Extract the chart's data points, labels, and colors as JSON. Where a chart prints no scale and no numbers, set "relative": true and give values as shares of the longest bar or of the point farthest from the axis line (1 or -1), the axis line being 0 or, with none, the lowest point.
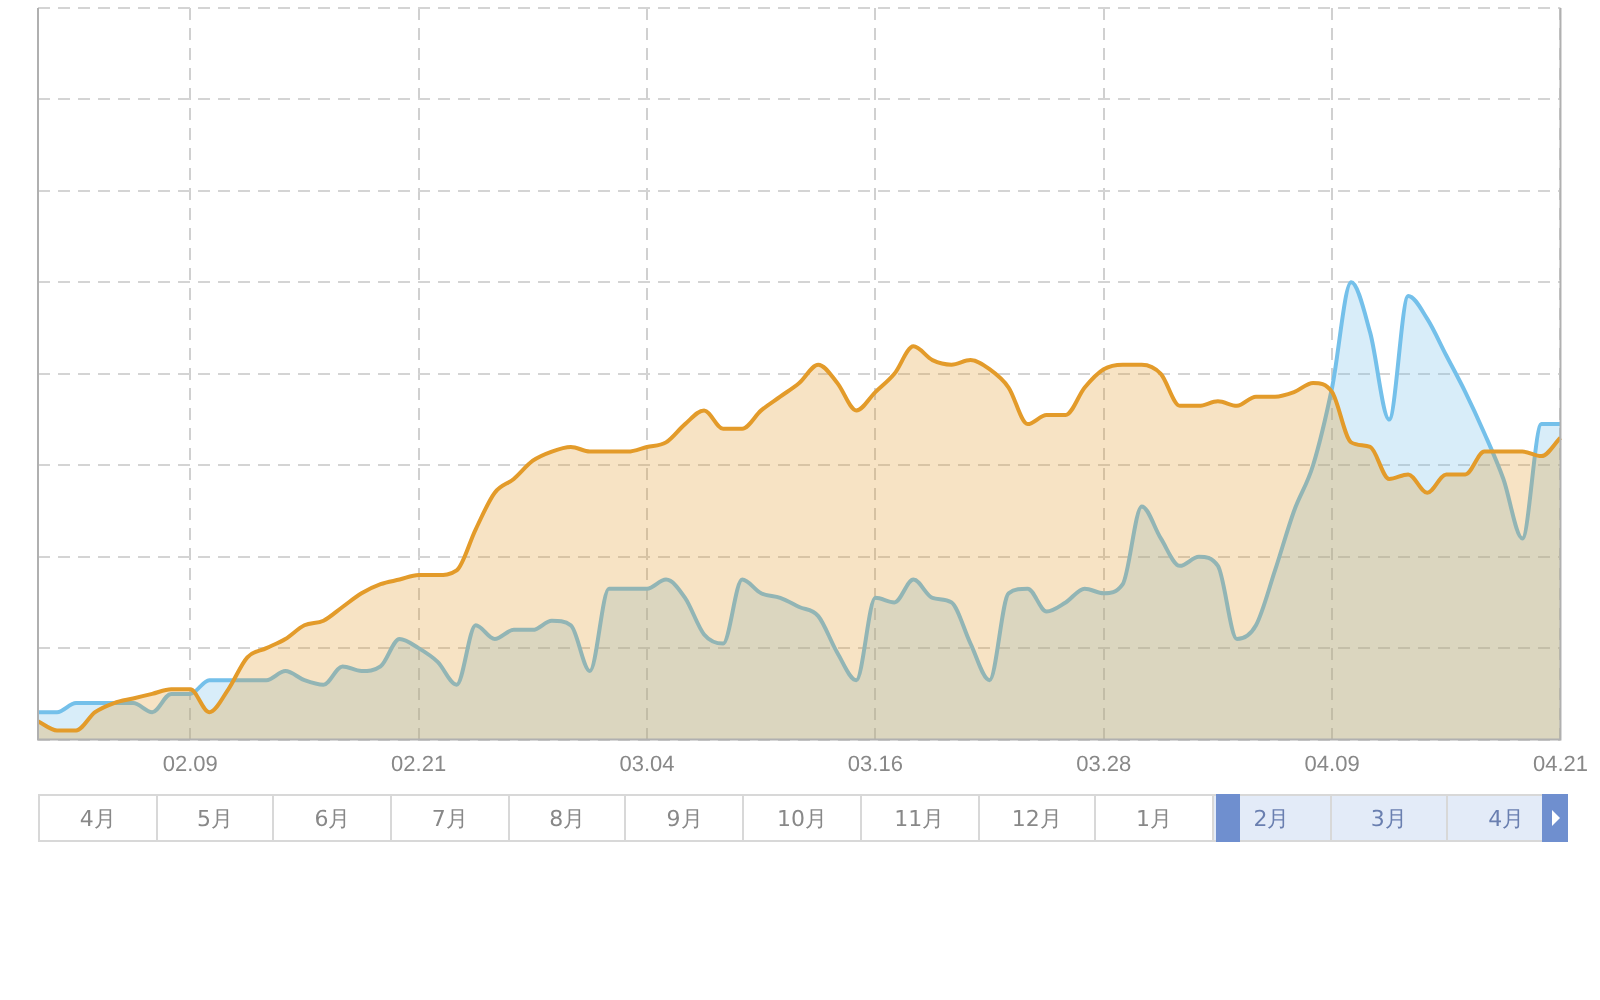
{
  "chart_data": {
    "type": "area",
    "relative": true,
    "grid": true,
    "categories": [
      null,
      null,
      null,
      null,
      null,
      null,
      null,
      null,
      "02.09",
      null,
      null,
      null,
      null,
      null,
      null,
      null,
      null,
      null,
      null,
      null,
      "02.21",
      null,
      null,
      null,
      null,
      null,
      null,
      null,
      null,
      null,
      null,
      null,
      "03.04",
      null,
      null,
      null,
      null,
      null,
      null,
      null,
      null,
      null,
      null,
      null,
      "03.16",
      null,
      null,
      null,
      null,
      null,
      null,
      null,
      null,
      null,
      null,
      null,
      "03.28",
      null,
      null,
      null,
      null,
      null,
      null,
      null,
      null,
      null,
      null,
      null,
      "04.09",
      null,
      null,
      null,
      null,
      null,
      null,
      null,
      null,
      null,
      null,
      null,
      "04.21"
    ],
    "series": [
      {
        "color": "#e39b2a",
        "values": [
          0.04,
          0.02,
          0.02,
          0.06,
          0.08,
          0.09,
          0.1,
          0.11,
          0.11,
          0.06,
          0.11,
          0.18,
          0.2,
          0.22,
          0.25,
          0.26,
          0.29,
          0.32,
          0.34,
          0.35,
          0.36,
          0.36,
          0.37,
          0.46,
          0.54,
          0.57,
          0.61,
          0.63,
          0.64,
          0.63,
          0.63,
          0.63,
          0.64,
          0.65,
          0.69,
          0.72,
          0.68,
          0.68,
          0.72,
          0.75,
          0.78,
          0.82,
          0.78,
          0.72,
          0.76,
          0.8,
          0.86,
          0.83,
          0.82,
          0.83,
          0.81,
          0.77,
          0.69,
          0.71,
          0.71,
          0.77,
          0.81,
          0.82,
          0.82,
          0.8,
          0.73,
          0.73,
          0.74,
          0.73,
          0.75,
          0.75,
          0.76,
          0.78,
          0.76,
          0.65,
          0.64,
          0.57,
          0.58,
          0.54,
          0.58,
          0.58,
          0.63,
          0.63,
          0.63,
          0.62,
          0.66
        ]
      },
      {
        "color": "#74c0ea",
        "values": [
          0.06,
          0.06,
          0.08,
          0.08,
          0.08,
          0.08,
          0.06,
          0.1,
          0.1,
          0.13,
          0.13,
          0.13,
          0.13,
          0.15,
          0.13,
          0.12,
          0.16,
          0.15,
          0.16,
          0.22,
          0.2,
          0.17,
          0.12,
          0.25,
          0.22,
          0.24,
          0.24,
          0.26,
          0.25,
          0.15,
          0.33,
          0.33,
          0.33,
          0.35,
          0.31,
          0.23,
          0.21,
          0.35,
          0.32,
          0.31,
          0.29,
          0.27,
          0.19,
          0.13,
          0.31,
          0.3,
          0.35,
          0.31,
          0.3,
          0.21,
          0.13,
          0.32,
          0.33,
          0.28,
          0.3,
          0.33,
          0.32,
          0.34,
          0.51,
          0.44,
          0.38,
          0.4,
          0.38,
          0.22,
          0.25,
          0.37,
          0.5,
          0.6,
          0.77,
          1,
          0.89,
          0.7,
          0.97,
          0.92,
          0.84,
          0.76,
          0.67,
          0.57,
          0.44,
          0.69,
          0.69
        ]
      }
    ],
    "annotations": [
      "4月",
      "5月",
      "6月",
      "7月",
      "8月",
      "9月",
      "10月",
      "11月",
      "12月",
      "1月",
      "2月",
      "3月",
      "4月"
    ]
  }
}
